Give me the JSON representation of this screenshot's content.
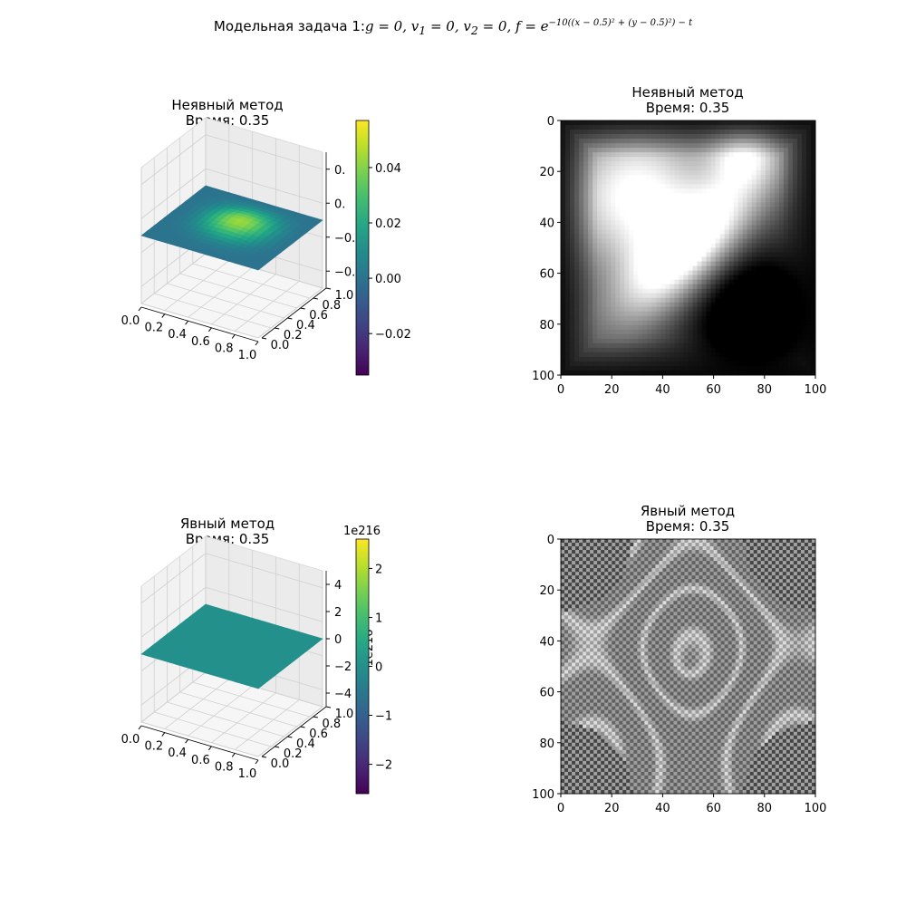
{
  "suptitle": {
    "prefix": "Модельная задача 1:",
    "formula_main": "g = 0, v",
    "sub1": "1",
    "formula_mid1": " = 0, v",
    "sub2": "2",
    "formula_mid2": " = 0, f = e",
    "exponent": "−10((x − 0.5)² + (y − 0.5)²) − t"
  },
  "colormap": "viridis",
  "image_cmap": "gray",
  "chart_data": [
    {
      "type": "surface3d",
      "name": "implicit-surface",
      "title_line1": "Неявный метод",
      "title_line2": "Время: 0.35",
      "x_ticks": [
        "0.0",
        "0.2",
        "0.4",
        "0.6",
        "0.8",
        "1.0"
      ],
      "y_ticks": [
        "0.0",
        "0.2",
        "0.4",
        "0.6",
        "0.8",
        "1.0"
      ],
      "z_ticks": [
        "0.",
        "0.",
        "−0.",
        "−0."
      ],
      "colorbar": {
        "ticks": [
          "0.04",
          "0.02",
          "0.00",
          "−0.02"
        ],
        "values": [
          0.04,
          0.02,
          0.0,
          -0.02
        ],
        "vmin": -0.035,
        "vmax": 0.057
      },
      "peak_value": 0.045
    },
    {
      "type": "heatmap",
      "name": "implicit-image",
      "title_line1": "Неявный метод",
      "title_line2": "Время: 0.35",
      "x_ticks": [
        "0",
        "20",
        "40",
        "60",
        "80",
        "100"
      ],
      "y_ticks": [
        "0",
        "20",
        "40",
        "60",
        "80",
        "100"
      ],
      "xlim": [
        0,
        100
      ],
      "ylim": [
        100,
        0
      ]
    },
    {
      "type": "surface3d",
      "name": "explicit-surface",
      "title_line1": "Явный метод",
      "title_line2": "Время: 0.35",
      "x_ticks": [
        "0.0",
        "0.2",
        "0.4",
        "0.6",
        "0.8",
        "1.0"
      ],
      "y_ticks": [
        "0.0",
        "0.2",
        "0.4",
        "0.6",
        "0.8",
        "1.0"
      ],
      "z_ticks": [
        "4",
        "2",
        "0",
        "−2",
        "−4"
      ],
      "z_offset": "1e216",
      "colorbar": {
        "offset": "1e216",
        "ticks": [
          "2",
          "1",
          "0",
          "−1",
          "−2"
        ],
        "values": [
          2,
          1,
          0,
          -1,
          -2
        ],
        "vmin": -2.6,
        "vmax": 2.6
      }
    },
    {
      "type": "heatmap",
      "name": "explicit-image",
      "title_line1": "Явный метод",
      "title_line2": "Время: 0.35",
      "x_ticks": [
        "0",
        "20",
        "40",
        "60",
        "80",
        "100"
      ],
      "y_ticks": [
        "0",
        "20",
        "40",
        "60",
        "80",
        "100"
      ],
      "xlim": [
        0,
        100
      ],
      "ylim": [
        100,
        0
      ]
    }
  ]
}
